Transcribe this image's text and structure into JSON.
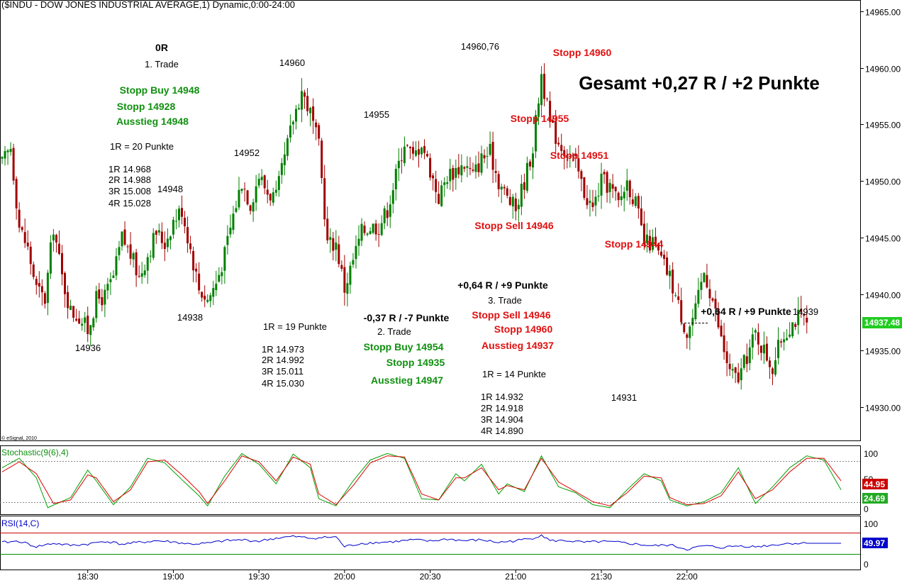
{
  "header_title": "($INDU - DOW JONES INDUSTRIAL AVERAGE,1) Dynamic,0:00-24:00",
  "copyright": "© eSignal, 2010",
  "colors": {
    "up": "#008000",
    "down": "#a00000",
    "green_text": "#109010",
    "red_text": "#e01010",
    "black": "#000000",
    "blue": "#0000cc",
    "last_price_bg": "#22cc22"
  },
  "last_price_label": "14937.48",
  "gesamt": "Gesamt +0,27 R / +2 Punkte",
  "annotations": {
    "r0": "0R",
    "t1_title": "1. Trade",
    "t1_stopp_buy": "Stopp Buy 14948",
    "t1_stopp": "Stopp 14928",
    "t1_ausstieg": "Ausstieg 14948",
    "t1_1r": "1R = 20 Punkte",
    "t1_levels": [
      "1R 14.968",
      "2R 14.988",
      "3R 15.008",
      "4R 15.028"
    ],
    "t2_result": "-0,37 R / -7 Punkte",
    "t2_title": "2. Trade",
    "t2_stopp_buy": "Stopp Buy 14954",
    "t2_stopp": "Stopp 14935",
    "t2_ausstieg": "Ausstieg 14947",
    "t2_1r": "1R = 19 Punkte",
    "t2_levels": [
      "1R 14.973",
      "2R 14.992",
      "3R 15.011",
      "4R 15.030"
    ],
    "t3_result": "+0,64 R / +9 Punkte",
    "t3_title": "3. Trade",
    "t3_stopp_sell": "Stopp Sell 14946",
    "t3_stopp": "Stopp 14960",
    "t3_ausstieg": "Ausstieg 14937",
    "t3_1r": "1R = 14 Punkte",
    "t3_levels": [
      "1R 14.932",
      "2R 14.918",
      "3R 14.904",
      "4R 14.890"
    ],
    "right_result": "+0,64 R / +9 Punkte",
    "stopp_14960": "Stopp 14960",
    "stopp_14955": "Stopp 14955",
    "stopp_14951": "Stopp 14951",
    "stopp_sell_14946": "Stopp Sell 14946",
    "stopp_14944": "Stopp 14944"
  },
  "price_labels": {
    "p14936": "14936",
    "p14948": "14948",
    "p14938": "14938",
    "p14952": "14952",
    "p14960": "14960",
    "p14955": "14955",
    "p14960_76": "14960,76",
    "p14931": "14931",
    "p14939": "14939"
  },
  "chart_data": {
    "type": "candlestick",
    "title": "($INDU - DOW JONES INDUSTRIAL AVERAGE,1) Dynamic,0:00-24:00",
    "x_ticks": [
      "18:30",
      "19:00",
      "19:30",
      "20:00",
      "20:30",
      "21:00",
      "21:30",
      "22:00"
    ],
    "y_ticks": [
      14930,
      14935,
      14940,
      14945,
      14950,
      14955,
      14960,
      14965
    ],
    "y_tick_labels": [
      "14930.00",
      "14935.00",
      "14940.00",
      "14945.00",
      "14950.00",
      "14955.00",
      "14960.00",
      "14965.00"
    ],
    "ylim": [
      14927,
      14966.5
    ],
    "bar_interval_minutes": 1,
    "first_bar_time": "18:00",
    "last_price": 14937.48,
    "close_path": [
      [
        0,
        14951.5
      ],
      [
        3,
        14953
      ],
      [
        6,
        14946
      ],
      [
        9,
        14944
      ],
      [
        12,
        14940.5
      ],
      [
        15,
        14939.5
      ],
      [
        18,
        14946
      ],
      [
        21,
        14941.5
      ],
      [
        24,
        14938.5
      ],
      [
        27,
        14938
      ],
      [
        30,
        14936.8
      ],
      [
        33,
        14939.5
      ],
      [
        36,
        14939.8
      ],
      [
        39,
        14941.5
      ],
      [
        42,
        14945
      ],
      [
        45,
        14943.5
      ],
      [
        48,
        14941.5
      ],
      [
        51,
        14943.5
      ],
      [
        54,
        14945.5
      ],
      [
        57,
        14944.5
      ],
      [
        60,
        14946.5
      ],
      [
        63,
        14947.5
      ],
      [
        66,
        14944
      ],
      [
        69,
        14940.5
      ],
      [
        72,
        14939.5
      ],
      [
        75,
        14941
      ],
      [
        78,
        14943.5
      ],
      [
        81,
        14947
      ],
      [
        84,
        14950
      ],
      [
        87,
        14948
      ],
      [
        90,
        14950.5
      ],
      [
        93,
        14949
      ],
      [
        96,
        14948.5
      ],
      [
        99,
        14952
      ],
      [
        102,
        14955.5
      ],
      [
        105,
        14958
      ],
      [
        108,
        14956
      ],
      [
        111,
        14953
      ],
      [
        114,
        14944.5
      ],
      [
        117,
        14944.5
      ],
      [
        120,
        14940.5
      ],
      [
        123,
        14943
      ],
      [
        126,
        14945.5
      ],
      [
        129,
        14946
      ],
      [
        132,
        14946
      ],
      [
        135,
        14947.5
      ],
      [
        138,
        14950.5
      ],
      [
        141,
        14953.5
      ],
      [
        144,
        14952
      ],
      [
        147,
        14953.5
      ],
      [
        150,
        14951
      ],
      [
        153,
        14948.5
      ],
      [
        156,
        14950.5
      ],
      [
        159,
        14951
      ],
      [
        162,
        14951.5
      ],
      [
        165,
        14950.5
      ],
      [
        168,
        14952
      ],
      [
        171,
        14952.5
      ],
      [
        174,
        14950
      ],
      [
        177,
        14948.5
      ],
      [
        180,
        14947.5
      ],
      [
        183,
        14950
      ],
      [
        186,
        14953
      ],
      [
        189,
        14959.5
      ],
      [
        192,
        14955
      ],
      [
        195,
        14953.5
      ],
      [
        198,
        14952.5
      ],
      [
        201,
        14951.5
      ],
      [
        204,
        14949
      ],
      [
        207,
        14947.5
      ],
      [
        210,
        14950
      ],
      [
        213,
        14949.5
      ],
      [
        216,
        14948
      ],
      [
        219,
        14950
      ],
      [
        222,
        14948
      ],
      [
        225,
        14944.5
      ],
      [
        228,
        14944.5
      ],
      [
        231,
        14943
      ],
      [
        234,
        14941.5
      ],
      [
        237,
        14939
      ],
      [
        240,
        14936.5
      ],
      [
        243,
        14938.5
      ],
      [
        246,
        14942
      ],
      [
        249,
        14939.5
      ],
      [
        252,
        14936
      ],
      [
        255,
        14933
      ],
      [
        258,
        14932.5
      ],
      [
        261,
        14934.5
      ],
      [
        264,
        14936.5
      ],
      [
        267,
        14935
      ],
      [
        270,
        14933.5
      ],
      [
        273,
        14936
      ],
      [
        276,
        14937.2
      ],
      [
        279,
        14938
      ],
      [
        282,
        14937.48
      ]
    ],
    "stochastic": {
      "label": "Stochastic(9(6),4)",
      "upper_level": 80,
      "lower_level": 20,
      "y_ticks": [
        0,
        100
      ],
      "last_k": 24.69,
      "last_d": 44.95,
      "k_path": [
        [
          0,
          72
        ],
        [
          6,
          88
        ],
        [
          12,
          55
        ],
        [
          16,
          5
        ],
        [
          24,
          22
        ],
        [
          30,
          68
        ],
        [
          33,
          50
        ],
        [
          39,
          10
        ],
        [
          45,
          40
        ],
        [
          51,
          88
        ],
        [
          57,
          80
        ],
        [
          63,
          52
        ],
        [
          69,
          25
        ],
        [
          72,
          8
        ],
        [
          78,
          58
        ],
        [
          84,
          96
        ],
        [
          90,
          78
        ],
        [
          96,
          45
        ],
        [
          102,
          95
        ],
        [
          108,
          72
        ],
        [
          111,
          20
        ],
        [
          117,
          8
        ],
        [
          123,
          50
        ],
        [
          129,
          85
        ],
        [
          135,
          96
        ],
        [
          141,
          88
        ],
        [
          147,
          20
        ],
        [
          153,
          18
        ],
        [
          159,
          62
        ],
        [
          162,
          50
        ],
        [
          168,
          78
        ],
        [
          174,
          28
        ],
        [
          177,
          45
        ],
        [
          183,
          32
        ],
        [
          189,
          92
        ],
        [
          195,
          40
        ],
        [
          201,
          30
        ],
        [
          207,
          10
        ],
        [
          213,
          5
        ],
        [
          219,
          35
        ],
        [
          225,
          62
        ],
        [
          231,
          50
        ],
        [
          234,
          18
        ],
        [
          240,
          8
        ],
        [
          246,
          15
        ],
        [
          252,
          30
        ],
        [
          258,
          72
        ],
        [
          264,
          12
        ],
        [
          270,
          40
        ],
        [
          276,
          72
        ],
        [
          282,
          92
        ],
        [
          288,
          85
        ],
        [
          294,
          35
        ]
      ],
      "d_path": [
        [
          0,
          65
        ],
        [
          6,
          82
        ],
        [
          12,
          62
        ],
        [
          18,
          12
        ],
        [
          24,
          18
        ],
        [
          30,
          60
        ],
        [
          33,
          55
        ],
        [
          39,
          15
        ],
        [
          45,
          35
        ],
        [
          51,
          82
        ],
        [
          57,
          85
        ],
        [
          63,
          60
        ],
        [
          69,
          32
        ],
        [
          72,
          12
        ],
        [
          78,
          50
        ],
        [
          84,
          92
        ],
        [
          90,
          82
        ],
        [
          96,
          50
        ],
        [
          102,
          90
        ],
        [
          108,
          78
        ],
        [
          111,
          28
        ],
        [
          117,
          10
        ],
        [
          123,
          42
        ],
        [
          129,
          80
        ],
        [
          135,
          92
        ],
        [
          141,
          90
        ],
        [
          147,
          28
        ],
        [
          153,
          18
        ],
        [
          159,
          55
        ],
        [
          162,
          55
        ],
        [
          168,
          72
        ],
        [
          174,
          35
        ],
        [
          177,
          42
        ],
        [
          183,
          35
        ],
        [
          189,
          88
        ],
        [
          195,
          48
        ],
        [
          201,
          32
        ],
        [
          207,
          15
        ],
        [
          213,
          8
        ],
        [
          219,
          30
        ],
        [
          225,
          58
        ],
        [
          231,
          55
        ],
        [
          234,
          22
        ],
        [
          240,
          10
        ],
        [
          246,
          12
        ],
        [
          252,
          25
        ],
        [
          258,
          65
        ],
        [
          264,
          20
        ],
        [
          270,
          35
        ],
        [
          276,
          65
        ],
        [
          282,
          88
        ],
        [
          288,
          88
        ],
        [
          294,
          50
        ]
      ]
    },
    "rsi": {
      "label": "RSI(14,C)",
      "upper_level": 70,
      "lower_level": 30,
      "y_ticks": [
        0,
        100
      ],
      "last_value": 49.97,
      "path": [
        [
          0,
          52
        ],
        [
          6,
          55
        ],
        [
          12,
          42
        ],
        [
          18,
          50
        ],
        [
          24,
          45
        ],
        [
          30,
          48
        ],
        [
          36,
          55
        ],
        [
          42,
          48
        ],
        [
          48,
          52
        ],
        [
          54,
          56
        ],
        [
          60,
          53
        ],
        [
          66,
          48
        ],
        [
          72,
          50
        ],
        [
          78,
          56
        ],
        [
          84,
          58
        ],
        [
          90,
          55
        ],
        [
          96,
          62
        ],
        [
          102,
          66
        ],
        [
          108,
          62
        ],
        [
          114,
          64
        ],
        [
          117,
          65
        ],
        [
          120,
          42
        ],
        [
          126,
          50
        ],
        [
          132,
          52
        ],
        [
          138,
          54
        ],
        [
          144,
          58
        ],
        [
          150,
          55
        ],
        [
          156,
          60
        ],
        [
          162,
          56
        ],
        [
          168,
          58
        ],
        [
          174,
          52
        ],
        [
          180,
          56
        ],
        [
          186,
          62
        ],
        [
          189,
          70
        ],
        [
          192,
          56
        ],
        [
          198,
          56
        ],
        [
          204,
          52
        ],
        [
          210,
          54
        ],
        [
          216,
          52
        ],
        [
          222,
          48
        ],
        [
          228,
          44
        ],
        [
          234,
          46
        ],
        [
          240,
          36
        ],
        [
          246,
          44
        ],
        [
          252,
          40
        ],
        [
          258,
          44
        ],
        [
          264,
          42
        ],
        [
          270,
          46
        ],
        [
          276,
          50
        ],
        [
          282,
          50
        ],
        [
          294,
          50
        ]
      ]
    }
  }
}
